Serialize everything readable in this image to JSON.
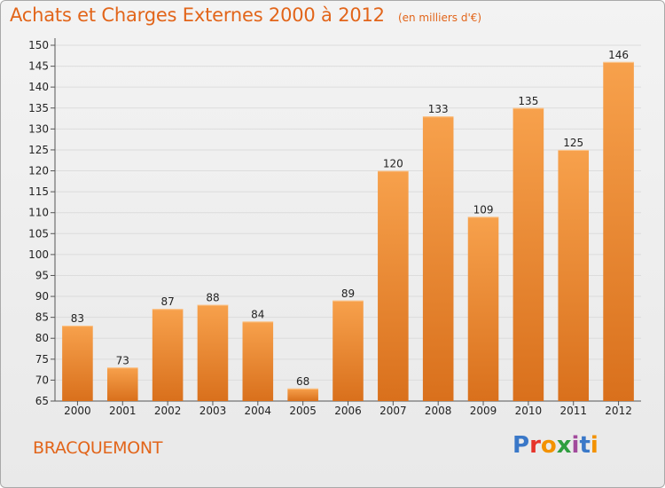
{
  "title": "Achats et Charges Externes 2000 à 2012",
  "subtitle": "(en milliers d'€)",
  "commune": "BRACQUEMONT",
  "logo_text": "Proxiti",
  "colors": {
    "title": "#e2651a",
    "bar_light": "#f7a14c",
    "bar_dark": "#d9701c",
    "grid": "#dcdcdc"
  },
  "chart_data": {
    "type": "bar",
    "title": "Achats et Charges Externes 2000 à 2012",
    "subtitle": "(en milliers d'€)",
    "categories": [
      "2000",
      "2001",
      "2002",
      "2003",
      "2004",
      "2005",
      "2006",
      "2007",
      "2008",
      "2009",
      "2010",
      "2011",
      "2012"
    ],
    "values": [
      83,
      73,
      87,
      88,
      84,
      68,
      89,
      120,
      133,
      109,
      135,
      125,
      146
    ],
    "ylim": [
      65,
      150
    ],
    "yticks": [
      65,
      70,
      75,
      80,
      85,
      90,
      95,
      100,
      105,
      110,
      115,
      120,
      125,
      130,
      135,
      140,
      145,
      150
    ],
    "grid": true,
    "data_labels": true
  }
}
